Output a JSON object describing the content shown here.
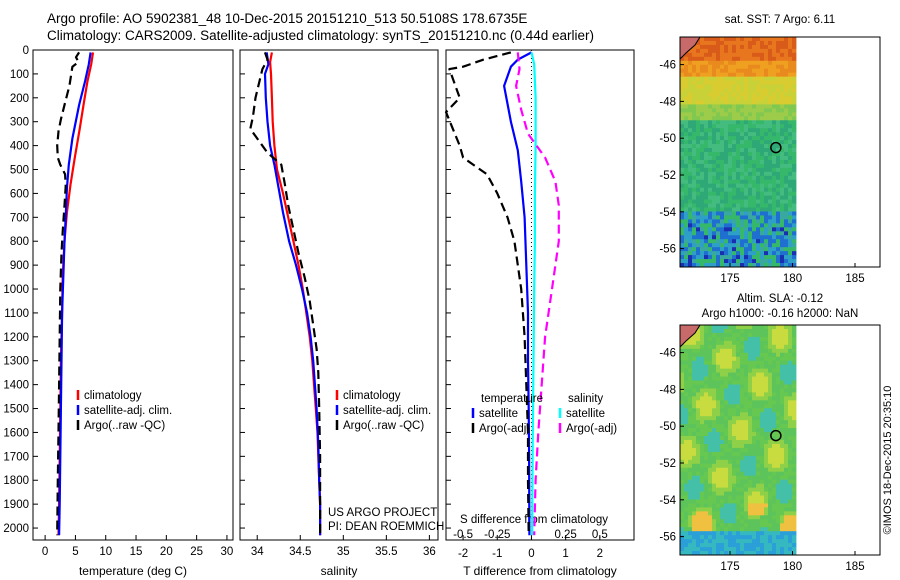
{
  "header": {
    "line1": "Argo profile: AO 5902381_48 10-Dec-2015 20151210_513 50.5108S 178.6735E",
    "line2": "Climatology: CARS2009. Satellite-adjusted climatology: synTS_20151210.nc (0.44d earlier)"
  },
  "footer": {
    "credit": "©IMOS 18-Dec-2015 20:35:10"
  },
  "colors": {
    "climatology": "#ff0000",
    "satellite": "#0000ff",
    "argo": "#000000",
    "sal_satellite": "#00ffff",
    "sal_argo": "#ff00ff"
  },
  "chart_data": [
    {
      "type": "line",
      "xlabel": "temperature (deg C)",
      "ylabel": "",
      "xlim": [
        -2,
        31
      ],
      "ylim": [
        2050,
        0
      ],
      "xticks": [
        0,
        5,
        10,
        15,
        20,
        25,
        30
      ],
      "yticks": [
        0,
        100,
        200,
        300,
        400,
        500,
        600,
        700,
        800,
        900,
        1000,
        1100,
        1200,
        1300,
        1400,
        1500,
        1600,
        1700,
        1800,
        1900,
        2000
      ],
      "legend": {
        "position": "middle-right",
        "entries": [
          "climatology",
          "satellite-adj. clim.",
          "Argo(..raw -QC)"
        ]
      },
      "series": [
        {
          "name": "climatology",
          "color": "#ff0000",
          "style": "solid",
          "points": [
            [
              7.9,
              10
            ],
            [
              7.6,
              60
            ],
            [
              7.0,
              130
            ],
            [
              6.4,
              220
            ],
            [
              5.7,
              330
            ],
            [
              4.9,
              450
            ],
            [
              4.2,
              560
            ],
            [
              3.6,
              680
            ],
            [
              3.2,
              800
            ],
            [
              2.9,
              950
            ],
            [
              2.8,
              1100
            ],
            [
              2.6,
              1300
            ],
            [
              2.5,
              1500
            ],
            [
              2.4,
              1700
            ],
            [
              2.3,
              1900
            ],
            [
              2.2,
              2030
            ]
          ]
        },
        {
          "name": "satellite-adj. clim.",
          "color": "#0000ff",
          "style": "solid",
          "points": [
            [
              7.5,
              10
            ],
            [
              7.2,
              60
            ],
            [
              6.6,
              130
            ],
            [
              5.6,
              230
            ],
            [
              4.5,
              370
            ],
            [
              3.9,
              480
            ],
            [
              3.6,
              580
            ],
            [
              3.4,
              700
            ],
            [
              3.2,
              800
            ],
            [
              3.0,
              950
            ],
            [
              2.8,
              1100
            ],
            [
              2.7,
              1300
            ],
            [
              2.6,
              1500
            ],
            [
              2.5,
              1700
            ],
            [
              2.4,
              1900
            ],
            [
              2.3,
              2030
            ]
          ]
        },
        {
          "name": "Argo(..raw -QC)",
          "color": "#000000",
          "style": "dashed",
          "points": [
            [
              5.6,
              10
            ],
            [
              5.1,
              30
            ],
            [
              5.5,
              50
            ],
            [
              4.5,
              70
            ],
            [
              4.0,
              150
            ],
            [
              3.3,
              220
            ],
            [
              2.6,
              290
            ],
            [
              2.2,
              340
            ],
            [
              2.0,
              400
            ],
            [
              2.1,
              450
            ],
            [
              2.5,
              480
            ],
            [
              3.3,
              520
            ],
            [
              3.4,
              570
            ],
            [
              3.2,
              650
            ],
            [
              2.9,
              760
            ],
            [
              2.7,
              850
            ],
            [
              2.5,
              1000
            ],
            [
              2.4,
              1200
            ],
            [
              2.3,
              1400
            ],
            [
              2.2,
              1600
            ],
            [
              2.1,
              1800
            ],
            [
              2.0,
              2030
            ]
          ]
        }
      ]
    },
    {
      "type": "line",
      "xlabel": "salinity",
      "ylabel": "",
      "xlim": [
        33.8,
        36.1
      ],
      "ylim": [
        2050,
        0
      ],
      "xticks": [
        34,
        34.5,
        35,
        35.5,
        36
      ],
      "legend": {
        "position": "middle-right",
        "entries": [
          "climatology",
          "satellite-adj. clim.",
          "Argo(..raw -QC)"
        ]
      },
      "annotations": [
        "US ARGO PROJECT",
        "PI: DEAN ROEMMICH"
      ],
      "series": [
        {
          "name": "climatology",
          "color": "#ff0000",
          "style": "solid",
          "points": [
            [
              34.17,
              10
            ],
            [
              34.15,
              50
            ],
            [
              34.16,
              100
            ],
            [
              34.17,
              200
            ],
            [
              34.18,
              300
            ],
            [
              34.2,
              400
            ],
            [
              34.23,
              500
            ],
            [
              34.3,
              600
            ],
            [
              34.36,
              700
            ],
            [
              34.42,
              800
            ],
            [
              34.48,
              900
            ],
            [
              34.53,
              1000
            ],
            [
              34.57,
              1100
            ],
            [
              34.61,
              1200
            ],
            [
              34.64,
              1300
            ],
            [
              34.66,
              1400
            ],
            [
              34.68,
              1500
            ],
            [
              34.7,
              1600
            ],
            [
              34.71,
              1700
            ],
            [
              34.72,
              1800
            ],
            [
              34.73,
              1900
            ],
            [
              34.73,
              2030
            ]
          ]
        },
        {
          "name": "satellite-adj. clim.",
          "color": "#0000ff",
          "style": "solid",
          "points": [
            [
              34.11,
              10
            ],
            [
              34.13,
              60
            ],
            [
              34.09,
              100
            ],
            [
              34.1,
              200
            ],
            [
              34.12,
              300
            ],
            [
              34.15,
              400
            ],
            [
              34.2,
              480
            ],
            [
              34.25,
              580
            ],
            [
              34.3,
              680
            ],
            [
              34.37,
              800
            ],
            [
              34.45,
              900
            ],
            [
              34.52,
              1000
            ],
            [
              34.58,
              1100
            ],
            [
              34.62,
              1200
            ],
            [
              34.65,
              1300
            ],
            [
              34.67,
              1400
            ],
            [
              34.69,
              1500
            ],
            [
              34.71,
              1650
            ],
            [
              34.72,
              1800
            ],
            [
              34.73,
              1900
            ],
            [
              34.73,
              2030
            ]
          ]
        },
        {
          "name": "Argo(..raw -QC)",
          "color": "#000000",
          "style": "dashed",
          "points": [
            [
              34.09,
              10
            ],
            [
              34.12,
              40
            ],
            [
              34.06,
              80
            ],
            [
              33.98,
              200
            ],
            [
              33.95,
              280
            ],
            [
              33.92,
              330
            ],
            [
              34.02,
              380
            ],
            [
              34.12,
              430
            ],
            [
              34.28,
              480
            ],
            [
              34.32,
              560
            ],
            [
              34.36,
              650
            ],
            [
              34.42,
              750
            ],
            [
              34.48,
              850
            ],
            [
              34.55,
              950
            ],
            [
              34.61,
              1050
            ],
            [
              34.65,
              1150
            ],
            [
              34.69,
              1250
            ],
            [
              34.71,
              1350
            ],
            [
              34.72,
              1500
            ],
            [
              34.73,
              1700
            ],
            [
              34.73,
              2030
            ]
          ]
        }
      ]
    },
    {
      "type": "line",
      "xlabel": "T difference from climatology",
      "ylabel": "",
      "xlim": [
        -2.5,
        3.0
      ],
      "ylim": [
        2050,
        0
      ],
      "xticks": [
        -2,
        -1,
        0,
        1,
        2
      ],
      "secondary_xlabel": "S difference from climatology",
      "secondary_xticks": [
        -0.5,
        -0.25,
        0.25,
        0.5
      ],
      "legend": {
        "position": "middle",
        "groups": {
          "temperature": [
            "satellite",
            "Argo(-adj)"
          ],
          "salinity": [
            "satellite",
            "Argo(-adj)"
          ]
        }
      },
      "series": [
        {
          "name": "temperature satellite",
          "color": "#0000ff",
          "style": "solid",
          "points": [
            [
              0.0,
              10
            ],
            [
              -0.4,
              40
            ],
            [
              -0.6,
              70
            ],
            [
              -0.8,
              150
            ],
            [
              -0.6,
              300
            ],
            [
              -0.4,
              420
            ],
            [
              -0.3,
              550
            ],
            [
              -0.2,
              700
            ],
            [
              -0.15,
              900
            ],
            [
              -0.1,
              1100
            ],
            [
              -0.1,
              1300
            ],
            [
              -0.08,
              1500
            ],
            [
              -0.07,
              1700
            ],
            [
              -0.06,
              2030
            ]
          ]
        },
        {
          "name": "temperature Argo(-adj)",
          "color": "#000000",
          "style": "dashed",
          "points": [
            [
              -0.6,
              10
            ],
            [
              -1.4,
              40
            ],
            [
              -2.0,
              70
            ],
            [
              -2.4,
              80
            ],
            [
              -2.1,
              200
            ],
            [
              -2.5,
              260
            ],
            [
              -2.1,
              400
            ],
            [
              -2.0,
              450
            ],
            [
              -1.3,
              520
            ],
            [
              -1.0,
              600
            ],
            [
              -0.7,
              700
            ],
            [
              -0.5,
              800
            ],
            [
              -0.3,
              1000
            ],
            [
              -0.2,
              1200
            ],
            [
              -0.15,
              1400
            ],
            [
              -0.1,
              1600
            ],
            [
              -0.1,
              1800
            ],
            [
              -0.08,
              2030
            ]
          ]
        },
        {
          "name": "salinity satellite",
          "color": "#00ffff",
          "style": "solid",
          "points": [
            [
              0.0,
              10
            ],
            [
              0.08,
              60
            ],
            [
              0.12,
              200
            ],
            [
              0.12,
              400
            ],
            [
              0.1,
              600
            ],
            [
              0.1,
              800
            ],
            [
              0.08,
              1000
            ],
            [
              0.06,
              1300
            ],
            [
              0.04,
              1600
            ],
            [
              0.02,
              2030
            ]
          ]
        },
        {
          "name": "salinity Argo(-adj)",
          "color": "#ff00ff",
          "style": "dashed",
          "points": [
            [
              -0.4,
              10
            ],
            [
              -0.35,
              80
            ],
            [
              -0.45,
              150
            ],
            [
              -0.3,
              250
            ],
            [
              -0.1,
              350
            ],
            [
              0.4,
              450
            ],
            [
              0.7,
              550
            ],
            [
              0.8,
              650
            ],
            [
              0.8,
              800
            ],
            [
              0.6,
              1000
            ],
            [
              0.4,
              1200
            ],
            [
              0.3,
              1400
            ],
            [
              0.2,
              1600
            ],
            [
              0.12,
              1800
            ],
            [
              0.08,
              2030
            ]
          ]
        }
      ]
    },
    {
      "type": "heatmap",
      "title": "sat. SST: 7 Argo: 6.11",
      "xlim": [
        171,
        187
      ],
      "ylim": [
        -57,
        -44.5
      ],
      "xticks": [
        175,
        180,
        185
      ],
      "yticks": [
        -46,
        -48,
        -50,
        -52,
        -54,
        -56
      ],
      "marker": {
        "lon": 178.67,
        "lat": -50.51
      }
    },
    {
      "type": "heatmap",
      "title": "Altim. SLA: -0.12",
      "subtitle": "Argo h1000: -0.16 h2000: NaN",
      "xlim": [
        171,
        187
      ],
      "ylim": [
        -57,
        -44.5
      ],
      "xticks": [
        175,
        180,
        185
      ],
      "yticks": [
        -46,
        -48,
        -50,
        -52,
        -54,
        -56
      ],
      "marker": {
        "lon": 178.67,
        "lat": -50.51
      }
    }
  ]
}
